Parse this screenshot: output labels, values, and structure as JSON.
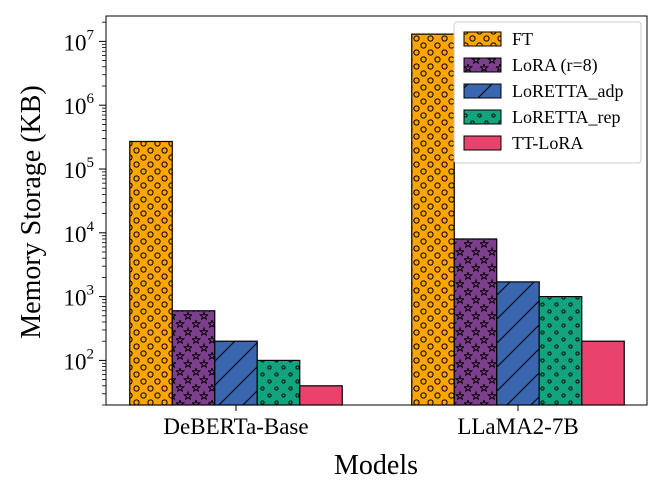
{
  "chart_data": {
    "type": "bar",
    "xlabel": "Models",
    "ylabel": "Memory Storage (KB)",
    "yscale": "log",
    "ylim": [
      20,
      25000000
    ],
    "categories": [
      "DeBERTa-Base",
      "LLaMA2-7B"
    ],
    "series": [
      {
        "name": "FT",
        "values": [
          270000,
          13000000
        ],
        "color": "#FFA500",
        "hatch": "circles"
      },
      {
        "name": "LoRA (r=8)",
        "values": [
          600,
          8000
        ],
        "color": "#7B3F8C",
        "hatch": "stars"
      },
      {
        "name": "LoRETTA_adp",
        "values": [
          200,
          1700
        ],
        "color": "#3A66B0",
        "hatch": "diagonal"
      },
      {
        "name": "LoRETTA_rep",
        "values": [
          100,
          1000
        ],
        "color": "#14A37F",
        "hatch": "dots"
      },
      {
        "name": "TT-LoRA",
        "values": [
          40,
          200
        ],
        "color": "#E9436D",
        "hatch": "none"
      }
    ],
    "yticks": [
      {
        "value": 100,
        "base": "10",
        "exp": "2"
      },
      {
        "value": 1000,
        "base": "10",
        "exp": "3"
      },
      {
        "value": 10000,
        "base": "10",
        "exp": "4"
      },
      {
        "value": 100000,
        "base": "10",
        "exp": "5"
      },
      {
        "value": 1000000,
        "base": "10",
        "exp": "6"
      },
      {
        "value": 10000000,
        "base": "10",
        "exp": "7"
      }
    ],
    "legend_position": "top-right",
    "grid": false
  }
}
